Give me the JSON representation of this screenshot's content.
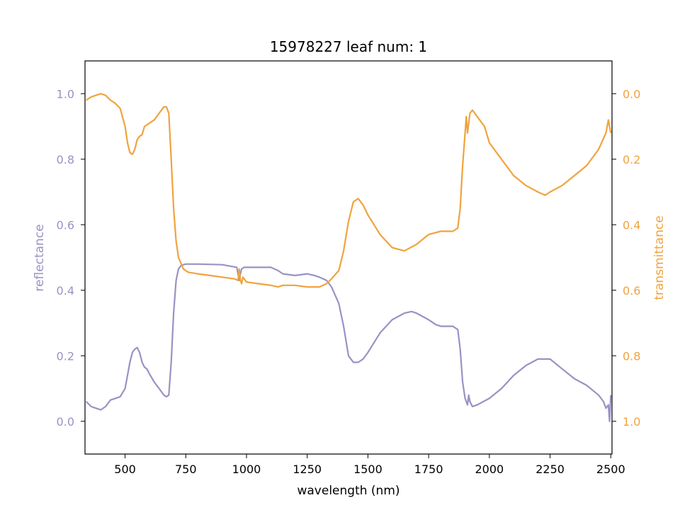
{
  "chart_data": {
    "type": "line",
    "title": "15978227 leaf num: 1",
    "xlabel": "wavelength (nm)",
    "ylabel_left": "reflectance",
    "ylabel_right": "transmittance",
    "xlim": [
      335,
      2505
    ],
    "ylim_left": [
      -0.1,
      1.1
    ],
    "ylim_right": [
      1.1,
      -0.1
    ],
    "right_axis_inverted": true,
    "grid": false,
    "x_ticks": [
      500,
      750,
      1000,
      1250,
      1500,
      1750,
      2000,
      2250,
      2500
    ],
    "y_ticks_left": [
      0.0,
      0.2,
      0.4,
      0.6,
      0.8,
      1.0
    ],
    "y_ticks_right": [
      0.0,
      0.2,
      0.4,
      0.6,
      0.8,
      1.0
    ],
    "colors": {
      "reflectance": "#9893c4",
      "transmittance": "#f0a33e"
    },
    "series": [
      {
        "key": "reflectance",
        "axis": "left",
        "x": [
          340,
          360,
          380,
          400,
          420,
          440,
          460,
          480,
          500,
          520,
          530,
          540,
          550,
          560,
          570,
          580,
          590,
          600,
          620,
          640,
          660,
          670,
          680,
          690,
          700,
          710,
          720,
          730,
          740,
          750,
          800,
          900,
          960,
          970,
          975,
          980,
          990,
          1000,
          1050,
          1100,
          1130,
          1150,
          1200,
          1250,
          1280,
          1300,
          1330,
          1350,
          1380,
          1400,
          1420,
          1440,
          1460,
          1480,
          1500,
          1550,
          1600,
          1650,
          1680,
          1700,
          1750,
          1780,
          1800,
          1850,
          1870,
          1880,
          1890,
          1900,
          1910,
          1915,
          1920,
          1930,
          1950,
          2000,
          2050,
          2100,
          2150,
          2200,
          2220,
          2250,
          2300,
          2350,
          2400,
          2450,
          2470,
          2480,
          2490,
          2495,
          2500
        ],
        "y": [
          0.06,
          0.045,
          0.04,
          0.035,
          0.045,
          0.065,
          0.07,
          0.075,
          0.1,
          0.18,
          0.21,
          0.22,
          0.225,
          0.21,
          0.18,
          0.165,
          0.16,
          0.145,
          0.12,
          0.1,
          0.08,
          0.075,
          0.08,
          0.18,
          0.33,
          0.43,
          0.465,
          0.475,
          0.478,
          0.48,
          0.48,
          0.478,
          0.47,
          0.43,
          0.45,
          0.465,
          0.47,
          0.47,
          0.47,
          0.47,
          0.46,
          0.45,
          0.445,
          0.45,
          0.445,
          0.44,
          0.43,
          0.41,
          0.36,
          0.29,
          0.2,
          0.18,
          0.18,
          0.19,
          0.21,
          0.27,
          0.31,
          0.33,
          0.335,
          0.33,
          0.31,
          0.295,
          0.29,
          0.29,
          0.28,
          0.22,
          0.12,
          0.07,
          0.05,
          0.08,
          0.06,
          0.045,
          0.05,
          0.07,
          0.1,
          0.14,
          0.17,
          0.19,
          0.19,
          0.19,
          0.16,
          0.13,
          0.11,
          0.08,
          0.06,
          0.04,
          0.05,
          0.0,
          0.08
        ]
      },
      {
        "key": "transmittance",
        "axis": "right",
        "x": [
          340,
          360,
          380,
          400,
          420,
          440,
          460,
          480,
          500,
          510,
          520,
          530,
          540,
          550,
          560,
          570,
          580,
          600,
          620,
          640,
          660,
          670,
          680,
          690,
          700,
          710,
          720,
          740,
          760,
          800,
          850,
          900,
          950,
          965,
          970,
          975,
          980,
          985,
          1000,
          1050,
          1100,
          1130,
          1150,
          1200,
          1250,
          1280,
          1300,
          1330,
          1350,
          1380,
          1400,
          1420,
          1440,
          1460,
          1480,
          1500,
          1550,
          1600,
          1650,
          1700,
          1750,
          1800,
          1850,
          1870,
          1880,
          1890,
          1900,
          1905,
          1910,
          1920,
          1930,
          1940,
          1960,
          1980,
          2000,
          2050,
          2100,
          2150,
          2200,
          2230,
          2250,
          2300,
          2350,
          2400,
          2450,
          2480,
          2490,
          2500
        ],
        "y": [
          0.02,
          0.01,
          0.005,
          0.0,
          0.005,
          0.02,
          0.03,
          0.045,
          0.1,
          0.15,
          0.18,
          0.185,
          0.17,
          0.14,
          0.13,
          0.125,
          0.1,
          0.09,
          0.08,
          0.06,
          0.04,
          0.04,
          0.06,
          0.2,
          0.35,
          0.45,
          0.5,
          0.535,
          0.545,
          0.55,
          0.555,
          0.56,
          0.565,
          0.57,
          0.535,
          0.57,
          0.58,
          0.56,
          0.575,
          0.58,
          0.585,
          0.59,
          0.585,
          0.585,
          0.59,
          0.59,
          0.59,
          0.58,
          0.565,
          0.54,
          0.48,
          0.39,
          0.33,
          0.32,
          0.34,
          0.37,
          0.43,
          0.47,
          0.48,
          0.46,
          0.43,
          0.42,
          0.42,
          0.41,
          0.35,
          0.22,
          0.12,
          0.07,
          0.12,
          0.06,
          0.05,
          0.06,
          0.08,
          0.1,
          0.15,
          0.2,
          0.25,
          0.28,
          0.3,
          0.31,
          0.3,
          0.28,
          0.25,
          0.22,
          0.17,
          0.12,
          0.08,
          0.12
        ]
      }
    ]
  }
}
